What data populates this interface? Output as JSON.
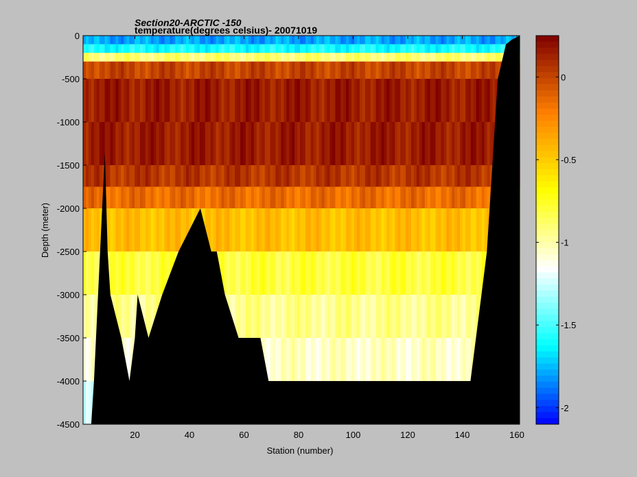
{
  "chart_data": {
    "type": "heatmap",
    "title": "Section20-ARCTIC  -150",
    "subtitle": "temperature(degrees  celsius)- 20071019",
    "xlabel": "Station (number)",
    "ylabel": "Depth (meter)",
    "xlim": [
      1,
      161
    ],
    "ylim": [
      -4500,
      0
    ],
    "x_ticks": [
      20,
      40,
      60,
      80,
      100,
      120,
      140,
      160
    ],
    "y_ticks": [
      0,
      -500,
      -1000,
      -1500,
      -2000,
      -2500,
      -3000,
      -3500,
      -4000,
      -4500
    ],
    "colorbar": {
      "range": [
        -2.1,
        0.25
      ],
      "ticks": [
        0,
        -0.5,
        -1,
        -1.5,
        -2
      ],
      "colormap": "jet",
      "colors": [
        "#0000ff",
        "#00ffff",
        "#ffffff",
        "#ffff00",
        "#ff8000",
        "#7f0000"
      ]
    },
    "no_data_color": "#000000",
    "depth_levels": [
      0,
      -100,
      -200,
      -300,
      -500,
      -750,
      -1000,
      -1250,
      -1500,
      -1750,
      -2000,
      -2500,
      -3000,
      -3500,
      -4000,
      -4500
    ],
    "layers": [
      {
        "top": 0,
        "bottom": -100,
        "value": -1.8
      },
      {
        "top": -100,
        "bottom": -200,
        "value": -1.6
      },
      {
        "top": -200,
        "bottom": -300,
        "value": -0.9
      },
      {
        "top": -300,
        "bottom": -500,
        "value": 0.0
      },
      {
        "top": -500,
        "bottom": -1000,
        "value": 0.15
      },
      {
        "top": -1000,
        "bottom": -1500,
        "value": 0.15
      },
      {
        "top": -1500,
        "bottom": -1750,
        "value": 0.05
      },
      {
        "top": -1750,
        "bottom": -2000,
        "value": -0.15
      },
      {
        "top": -2000,
        "bottom": -2500,
        "value": -0.45
      },
      {
        "top": -2500,
        "bottom": -3000,
        "value": -0.8
      },
      {
        "top": -3000,
        "bottom": -3500,
        "value": -0.95
      },
      {
        "top": -3500,
        "bottom": -4000,
        "value": -1.05
      },
      {
        "top": -4000,
        "bottom": -4500,
        "value": -1.25
      }
    ],
    "bottom_depth_profile": [
      [
        1,
        -4500
      ],
      [
        4,
        -4500
      ],
      [
        5,
        -4000
      ],
      [
        8,
        -2000
      ],
      [
        9,
        -1350
      ],
      [
        10,
        -2500
      ],
      [
        11,
        -3000
      ],
      [
        15,
        -3500
      ],
      [
        18,
        -4000
      ],
      [
        20,
        -3500
      ],
      [
        21,
        -3000
      ],
      [
        25,
        -3500
      ],
      [
        30,
        -3000
      ],
      [
        36,
        -2500
      ],
      [
        44,
        -2000
      ],
      [
        48,
        -2500
      ],
      [
        50,
        -2500
      ],
      [
        53,
        -3000
      ],
      [
        58,
        -3500
      ],
      [
        63,
        -3500
      ],
      [
        66,
        -3500
      ],
      [
        69,
        -4000
      ],
      [
        143,
        -4000
      ],
      [
        145,
        -3500
      ],
      [
        147,
        -3000
      ],
      [
        149,
        -2500
      ],
      [
        151,
        -1500
      ],
      [
        153,
        -500
      ],
      [
        156,
        -100
      ],
      [
        158,
        -50
      ],
      [
        161,
        0
      ]
    ]
  }
}
